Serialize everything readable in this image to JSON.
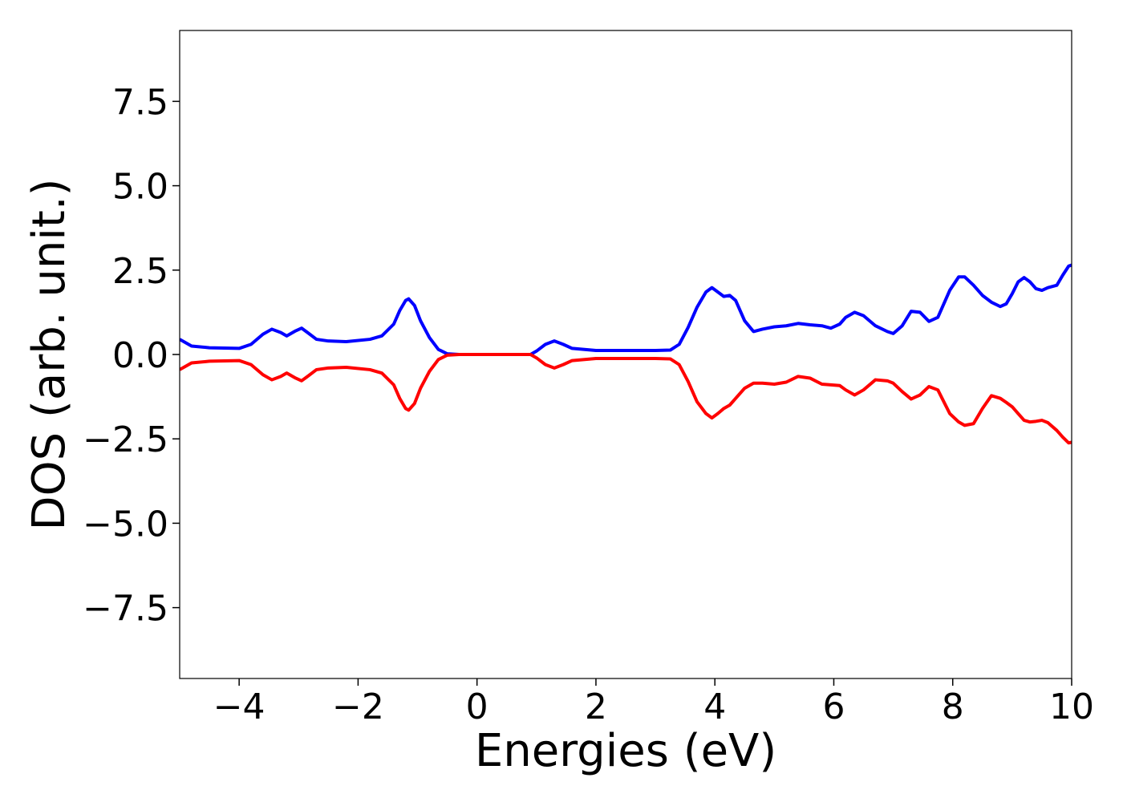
{
  "chart_data": {
    "type": "line",
    "title": "",
    "xlabel": "Energies (eV)",
    "ylabel": "DOS (arb. unit.)",
    "xlim": [
      -5,
      10
    ],
    "ylim": [
      -9.6,
      9.6
    ],
    "x_ticks": [
      -4,
      -2,
      0,
      2,
      4,
      6,
      8,
      10
    ],
    "x_tick_labels": [
      "−4",
      "−2",
      "0",
      "2",
      "4",
      "6",
      "8",
      "10"
    ],
    "y_ticks": [
      7.5,
      5.0,
      2.5,
      0.0,
      -2.5,
      -5.0,
      -7.5
    ],
    "y_tick_labels": [
      "7.5",
      "5.0",
      "2.5",
      "0.0",
      "−2.5",
      "−5.0",
      "−7.5"
    ],
    "grid": false,
    "series": [
      {
        "color": "#0000ff",
        "x": [
          -5.0,
          -4.8,
          -4.5,
          -4.0,
          -3.8,
          -3.6,
          -3.45,
          -3.3,
          -3.2,
          -3.05,
          -2.95,
          -2.85,
          -2.7,
          -2.5,
          -2.2,
          -1.8,
          -1.6,
          -1.4,
          -1.3,
          -1.2,
          -1.15,
          -1.05,
          -0.95,
          -0.8,
          -0.65,
          -0.5,
          -0.3,
          0.0,
          0.5,
          0.9,
          1.0,
          1.15,
          1.3,
          1.45,
          1.6,
          2.0,
          2.5,
          3.0,
          3.25,
          3.4,
          3.55,
          3.7,
          3.85,
          3.95,
          4.05,
          4.15,
          4.25,
          4.35,
          4.5,
          4.65,
          4.8,
          5.0,
          5.2,
          5.4,
          5.6,
          5.8,
          5.95,
          6.1,
          6.2,
          6.35,
          6.5,
          6.7,
          6.9,
          7.0,
          7.15,
          7.3,
          7.45,
          7.6,
          7.75,
          7.95,
          8.1,
          8.2,
          8.35,
          8.5,
          8.65,
          8.8,
          8.9,
          9.0,
          9.1,
          9.2,
          9.3,
          9.4,
          9.5,
          9.6,
          9.75,
          9.85,
          9.95,
          10.0
        ],
        "y": [
          0.45,
          0.25,
          0.2,
          0.18,
          0.3,
          0.6,
          0.75,
          0.65,
          0.55,
          0.7,
          0.78,
          0.65,
          0.45,
          0.4,
          0.38,
          0.45,
          0.55,
          0.9,
          1.3,
          1.6,
          1.65,
          1.45,
          1.0,
          0.5,
          0.15,
          0.02,
          0.0,
          0.0,
          0.0,
          0.0,
          0.1,
          0.3,
          0.4,
          0.3,
          0.18,
          0.12,
          0.12,
          0.12,
          0.13,
          0.3,
          0.8,
          1.4,
          1.85,
          1.98,
          1.85,
          1.72,
          1.75,
          1.6,
          1.0,
          0.68,
          0.75,
          0.82,
          0.85,
          0.92,
          0.88,
          0.85,
          0.78,
          0.9,
          1.1,
          1.25,
          1.15,
          0.85,
          0.68,
          0.62,
          0.85,
          1.28,
          1.25,
          0.98,
          1.1,
          1.9,
          2.3,
          2.3,
          2.05,
          1.75,
          1.55,
          1.42,
          1.5,
          1.8,
          2.15,
          2.28,
          2.15,
          1.95,
          1.9,
          1.98,
          2.05,
          2.35,
          2.62,
          2.65
        ]
      },
      {
        "color": "#ff0000",
        "x": [
          -5.0,
          -4.8,
          -4.5,
          -4.0,
          -3.8,
          -3.6,
          -3.45,
          -3.3,
          -3.2,
          -3.05,
          -2.95,
          -2.85,
          -2.7,
          -2.5,
          -2.2,
          -1.8,
          -1.6,
          -1.4,
          -1.3,
          -1.2,
          -1.15,
          -1.05,
          -0.95,
          -0.8,
          -0.65,
          -0.5,
          -0.3,
          0.0,
          0.5,
          0.9,
          1.0,
          1.15,
          1.3,
          1.45,
          1.6,
          2.0,
          2.5,
          3.0,
          3.25,
          3.4,
          3.55,
          3.7,
          3.85,
          3.95,
          4.05,
          4.15,
          4.25,
          4.35,
          4.5,
          4.65,
          4.8,
          5.0,
          5.2,
          5.4,
          5.6,
          5.8,
          5.95,
          6.1,
          6.2,
          6.35,
          6.5,
          6.7,
          6.9,
          7.0,
          7.15,
          7.3,
          7.45,
          7.6,
          7.75,
          7.95,
          8.1,
          8.2,
          8.35,
          8.5,
          8.65,
          8.8,
          8.9,
          9.0,
          9.1,
          9.2,
          9.3,
          9.4,
          9.5,
          9.6,
          9.75,
          9.85,
          9.95,
          10.0
        ],
        "y": [
          -0.45,
          -0.25,
          -0.2,
          -0.18,
          -0.3,
          -0.6,
          -0.75,
          -0.65,
          -0.55,
          -0.7,
          -0.78,
          -0.65,
          -0.45,
          -0.4,
          -0.38,
          -0.45,
          -0.55,
          -0.9,
          -1.3,
          -1.6,
          -1.65,
          -1.45,
          -1.0,
          -0.5,
          -0.15,
          -0.02,
          0.0,
          0.0,
          0.0,
          0.0,
          -0.1,
          -0.3,
          -0.4,
          -0.3,
          -0.18,
          -0.12,
          -0.12,
          -0.12,
          -0.13,
          -0.3,
          -0.8,
          -1.4,
          -1.75,
          -1.88,
          -1.75,
          -1.6,
          -1.5,
          -1.3,
          -1.0,
          -0.85,
          -0.85,
          -0.88,
          -0.82,
          -0.65,
          -0.7,
          -0.88,
          -0.9,
          -0.92,
          -1.05,
          -1.2,
          -1.05,
          -0.75,
          -0.78,
          -0.85,
          -1.1,
          -1.32,
          -1.2,
          -0.95,
          -1.05,
          -1.75,
          -2.0,
          -2.1,
          -2.05,
          -1.6,
          -1.22,
          -1.3,
          -1.42,
          -1.55,
          -1.75,
          -1.95,
          -2.0,
          -1.98,
          -1.95,
          -2.02,
          -2.25,
          -2.45,
          -2.62,
          -2.6
        ]
      }
    ]
  }
}
